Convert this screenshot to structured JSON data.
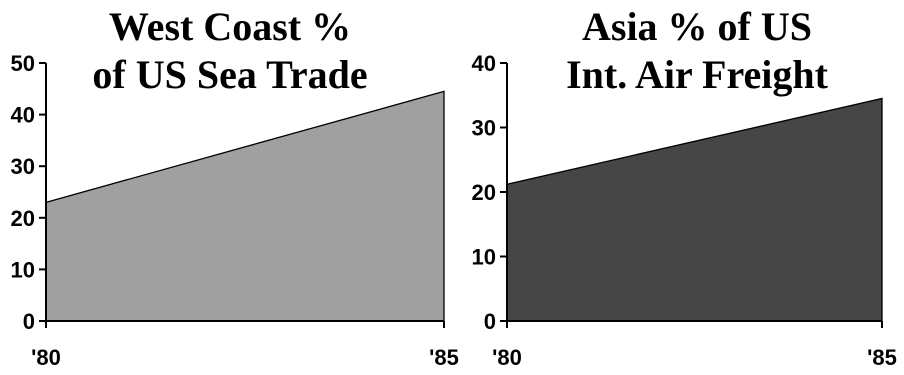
{
  "chart_data": [
    {
      "type": "area",
      "title_lines": [
        "West Coast %",
        "of US Sea Trade"
      ],
      "x": [
        "'80",
        "'85"
      ],
      "series": [
        {
          "values": [
            23,
            44.5
          ]
        }
      ],
      "ylim": [
        0,
        50
      ],
      "yticks": [
        0,
        10,
        20,
        30,
        40,
        50
      ],
      "xlabel": "",
      "ylabel": "",
      "fill_color": "#a0a0a0",
      "grid": false,
      "legend": "none"
    },
    {
      "type": "area",
      "title_lines": [
        "Asia  % of US",
        "Int. Air Freight"
      ],
      "x": [
        "'80",
        "'85"
      ],
      "series": [
        {
          "values": [
            21.2,
            34.5
          ]
        }
      ],
      "ylim": [
        0,
        40
      ],
      "yticks": [
        0,
        10,
        20,
        30,
        40
      ],
      "xlabel": "",
      "ylabel": "",
      "fill_color": "#464646",
      "grid": false,
      "legend": "none"
    }
  ]
}
